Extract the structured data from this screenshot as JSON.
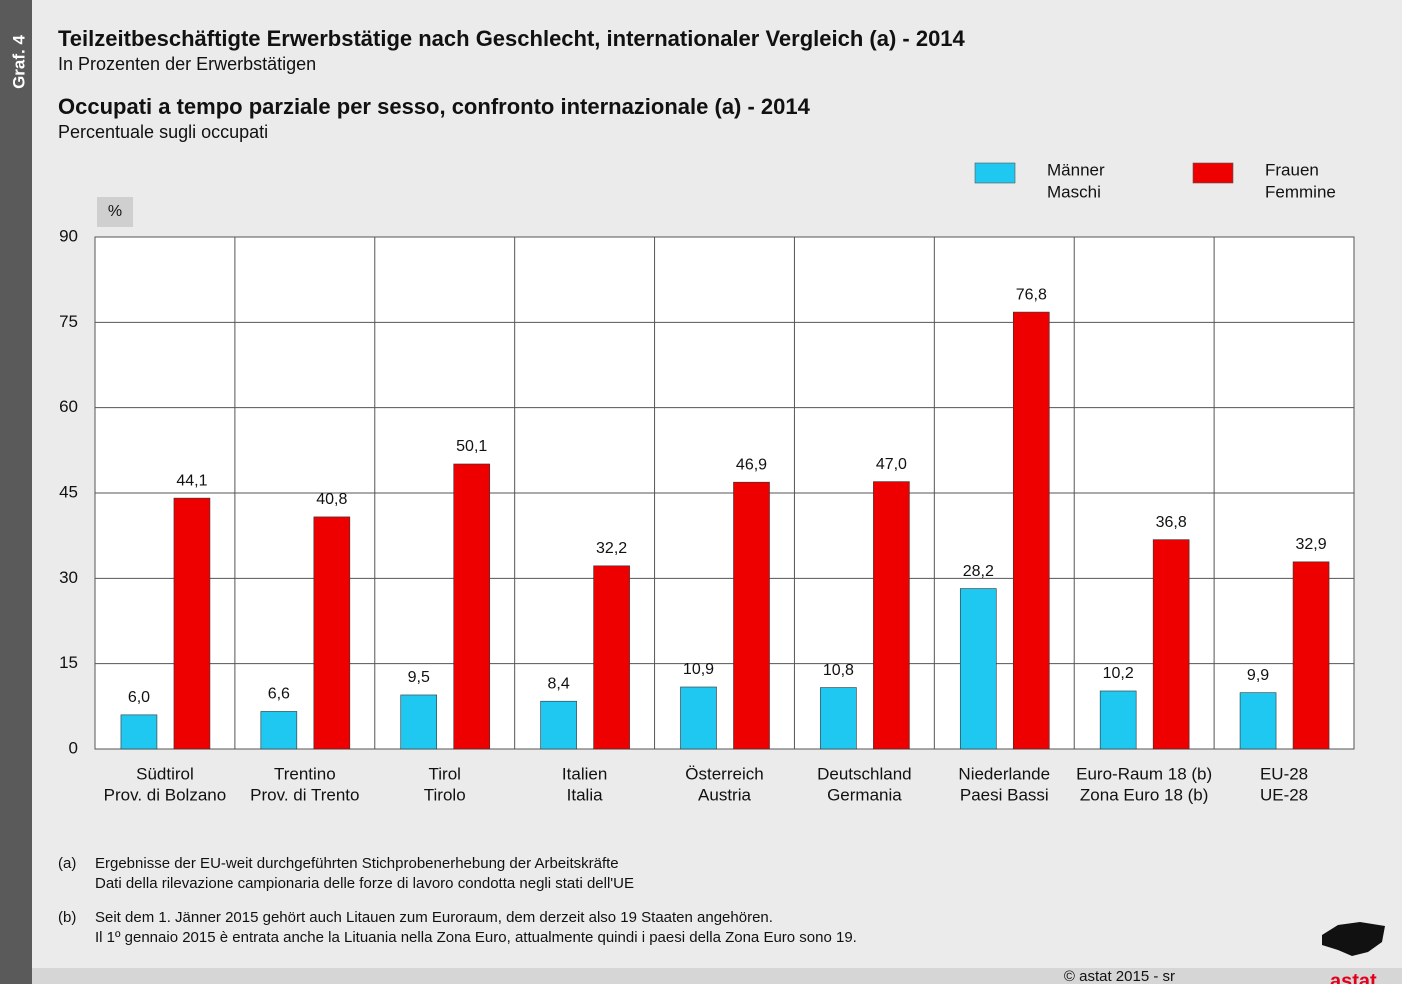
{
  "chart_data": {
    "type": "bar",
    "label": "Graf. 4",
    "title": "Teilzeitbeschäftigte Erwerbstätige nach Geschlecht, internationaler Vergleich (a) - 2014",
    "subtitle": "In Prozenten der Erwerbstätigen",
    "title_it": "Occupati a tempo parziale per sesso, confronto internazionale (a) - 2014",
    "subtitle_it": "Percentuale sugli occupati",
    "y_unit": "%",
    "categories": [
      [
        "Südtirol",
        "Prov. di Bolzano"
      ],
      [
        "Trentino",
        "Prov. di Trento"
      ],
      [
        "Tirol",
        "Tirolo"
      ],
      [
        "Italien",
        "Italia"
      ],
      [
        "Österreich",
        "Austria"
      ],
      [
        "Deutschland",
        "Germania"
      ],
      [
        "Niederlande",
        "Paesi Bassi"
      ],
      [
        "Euro-Raum 18 (b)",
        "Zona Euro 18 (b)"
      ],
      [
        "EU-28",
        "UE-28"
      ]
    ],
    "series": [
      {
        "name": [
          "Männer",
          "Maschi"
        ],
        "color": "#1ec8f0",
        "values": [
          6.0,
          6.6,
          9.5,
          8.4,
          10.9,
          10.8,
          28.2,
          10.2,
          9.9
        ],
        "value_labels": [
          "6,0",
          "6,6",
          "9,5",
          "8,4",
          "10,9",
          "10,8",
          "28,2",
          "10,2",
          "9,9"
        ]
      },
      {
        "name": [
          "Frauen",
          "Femmine"
        ],
        "color": "#ee0000",
        "values": [
          44.1,
          40.8,
          50.1,
          32.2,
          46.9,
          47.0,
          76.8,
          36.8,
          32.9
        ],
        "value_labels": [
          "44,1",
          "40,8",
          "50,1",
          "32,2",
          "46,9",
          "47,0",
          "76,8",
          "36,8",
          "32,9"
        ]
      }
    ],
    "ylim": [
      0,
      90
    ],
    "yticks": [
      0,
      15,
      30,
      45,
      60,
      75,
      90
    ],
    "grid": true,
    "notes": [
      {
        "marker": "(a)",
        "lines": [
          "Ergebnisse der EU-weit durchgeführten Stichprobenerhebung der Arbeitskräfte",
          "Dati della rilevazione campionaria delle forze di lavoro condotta negli stati dell'UE"
        ]
      },
      {
        "marker": "(b)",
        "lines": [
          "Seit dem 1. Jänner 2015 gehört auch Litauen zum Euroraum, dem derzeit also 19 Staaten angehören.",
          "Il 1º gennaio 2015 è entrata anche la Lituania nella Zona Euro, attualmente quindi i paesi della Zona Euro sono 19."
        ]
      }
    ],
    "source": "© astat 2015 - sr",
    "logo": "astat"
  }
}
